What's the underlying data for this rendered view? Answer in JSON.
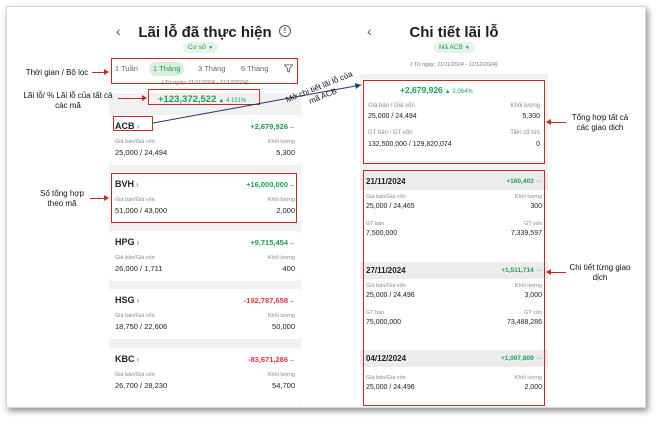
{
  "left_screen": {
    "title": "Lãi lỗ đã thực hiện",
    "filter_pill": "Cơ sở",
    "tabs": [
      {
        "label": "1 Tuần",
        "active": false
      },
      {
        "label": "1 Tháng",
        "active": true
      },
      {
        "label": "3 Tháng",
        "active": false
      },
      {
        "label": "6 Tháng",
        "active": false
      }
    ],
    "date_range": "( Từ ngày: 11/11/2024 - 11/12/2024)",
    "total_value": "+123,372,522",
    "total_pct": "▲ 4.151%",
    "cards": [
      {
        "symbol": "ACB",
        "pl": "+2,679,926",
        "pl_sign": "pos",
        "price_label": "Giá bán/Giá vốn",
        "price": "25,000 / 24,494",
        "qty_label": "Khối lượng",
        "qty": "5,300"
      },
      {
        "symbol": "BVH",
        "pl": "+16,000,000",
        "pl_sign": "pos",
        "price_label": "Giá bán/Giá vốn",
        "price": "51,000 / 43,000",
        "qty_label": "Khối lượng",
        "qty": "2,000"
      },
      {
        "symbol": "HPG",
        "pl": "+9,715,454",
        "pl_sign": "pos",
        "price_label": "Giá bán/Giá vốn",
        "price": "26,000 / 1,711",
        "qty_label": "Khối lượng",
        "qty": "400"
      },
      {
        "symbol": "HSG",
        "pl": "-192,787,658",
        "pl_sign": "neg",
        "price_label": "Giá bán/Giá vốn",
        "price": "18,750 / 22,606",
        "qty_label": "Khối lượng",
        "qty": "50,000"
      },
      {
        "symbol": "KBC",
        "pl": "-83,671,286",
        "pl_sign": "neg",
        "price_label": "Giá bán/Giá vốn",
        "price": "26,700 / 28,230",
        "qty_label": "Khối lượng",
        "qty": "54,700"
      }
    ]
  },
  "right_screen": {
    "title": "Chi tiết lãi lỗ",
    "filter_pill": "Mã ACB",
    "date_range": "( Từ ngày: 11/11/2024 - 11/12/2024)",
    "summary": {
      "total_value": "+2,679,926",
      "total_pct": "▲ 2.064%",
      "price_label": "Giá bán / Giá vốn",
      "price": "25,000 / 24,494",
      "qty_label": "Khối lượng",
      "qty": "5,300",
      "gt_label": "GT bán / GT vốn",
      "gt": "132,500,000 / 129,820,074",
      "div_label": "Tiền cổ tức",
      "div": "0"
    },
    "transactions": [
      {
        "date": "21/11/2024",
        "amount": "+160,403",
        "price_label": "Giá bán/Giá vốn",
        "price": "25,000 / 24,465",
        "qty_label": "Khối lượng",
        "qty": "300",
        "sell_label": "GT bán",
        "sell": "7,500,000",
        "cost_label": "GT vốn",
        "cost": "7,339,597"
      },
      {
        "date": "27/11/2024",
        "amount": "+1,511,714",
        "price_label": "Giá bán/Giá vốn",
        "price": "25,000 / 24,496",
        "qty_label": "Khối lượng",
        "qty": "3,000",
        "sell_label": "GT bán",
        "sell": "75,000,000",
        "cost_label": "GT vốn",
        "cost": "73,488,286"
      },
      {
        "date": "04/12/2024",
        "amount": "+1,007,809",
        "price_label": "Giá bán/Giá vốn",
        "price": "25,000 / 24,496",
        "qty_label": "Khối lượng",
        "qty": "2,000"
      }
    ]
  },
  "annotations": {
    "time_filter": "Thời gian / Bộ lọc",
    "total_pl": "Lãi lỗ/ % Lãi lỗ của tất cả các mã",
    "per_symbol": "Số tổng hợp theo mã",
    "detail_link": "Mở chi tiết lãi lỗ của mã ACB",
    "total_tx": "Tổng hợp tất cả các giao dịch",
    "tx_detail": "Chi tiết từng giao dịch"
  },
  "colors": {
    "gain": "#1f9d55",
    "loss": "#e0353d",
    "annotation": "#c62828"
  }
}
